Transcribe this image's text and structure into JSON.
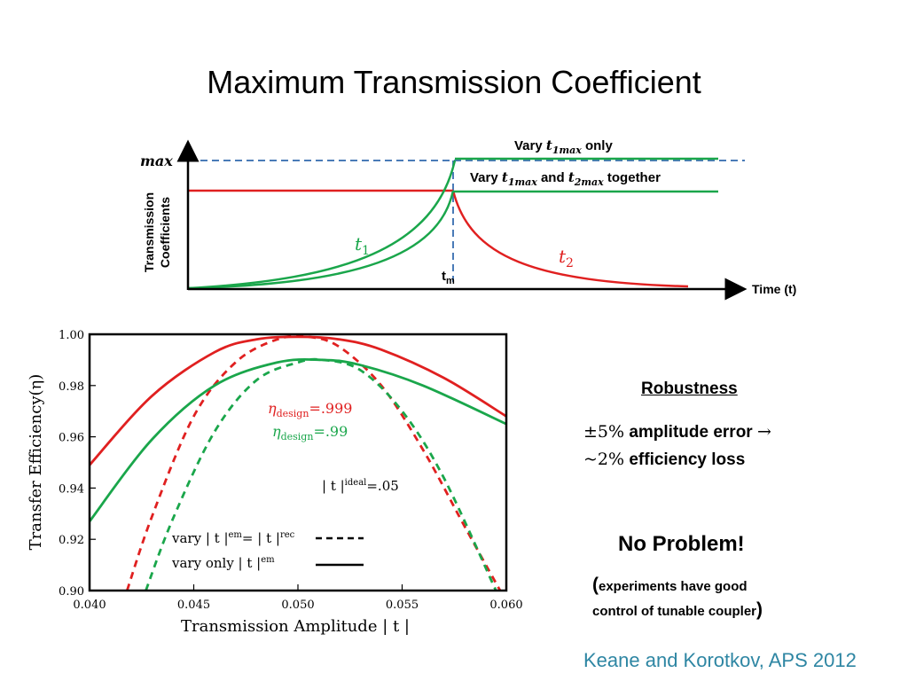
{
  "slide": {
    "title": "Maximum Transmission Coefficient",
    "citation": "Keane and Korotkov, APS 2012"
  },
  "colors": {
    "red": "#e02020",
    "green": "#1aa64b",
    "dashed_blue": "#4a7bb7",
    "citation": "#2e86a3"
  },
  "schematic": {
    "y_axis_label_line1": "Transmission",
    "y_axis_label_line2": "Coefficients",
    "x_axis_label": "Time (t)",
    "max_label": "max",
    "tm_label": "t",
    "tm_sub": "m",
    "t1_label": "t",
    "t1_sub": "1",
    "t2_label": "t",
    "t2_sub": "2",
    "annot_vary_t1_pre": "Vary ",
    "annot_vary_t1_var": "t",
    "annot_vary_t1_sub": "1max",
    "annot_vary_t1_post": " only",
    "annot_vary_both_pre": "Vary ",
    "annot_vary_both_var1": "t",
    "annot_vary_both_sub1": "1max",
    "annot_vary_both_mid": " and ",
    "annot_vary_both_var2": "t",
    "annot_vary_both_sub2": "2max",
    "annot_vary_both_post": " together"
  },
  "chart_data": {
    "type": "line",
    "xlabel": "Transmission Amplitude | t |",
    "ylabel": "Transfer Efficiency(η)",
    "xlim": [
      0.04,
      0.06
    ],
    "ylim": [
      0.9,
      1.0
    ],
    "x_ticks": [
      "0.040",
      "0.045",
      "0.050",
      "0.055",
      "0.060"
    ],
    "y_ticks": [
      "0.90",
      "0.92",
      "0.94",
      "0.96",
      "0.98",
      "1.00"
    ],
    "annotation_red": "η",
    "annotation_red_sub": "design",
    "annotation_red_val": "=.999",
    "annotation_green": "η",
    "annotation_green_sub": "design",
    "annotation_green_val": "=.99",
    "annotation_ideal": "| t |",
    "annotation_ideal_sup": "ideal",
    "annotation_ideal_val": "=.05",
    "legend_dashed": "vary | t |",
    "legend_dashed_sup1": "em",
    "legend_dashed_mid": "= | t |",
    "legend_dashed_sup2": "rec",
    "legend_solid": "vary only | t |",
    "legend_solid_sup": "em",
    "series": [
      {
        "color": "red",
        "style": "solid",
        "x": [
          0.04,
          0.043,
          0.046,
          0.048,
          0.05,
          0.052,
          0.054,
          0.057,
          0.06
        ],
        "y": [
          0.949,
          0.976,
          0.993,
          0.998,
          0.999,
          0.998,
          0.994,
          0.983,
          0.968
        ]
      },
      {
        "color": "red",
        "style": "dashed",
        "x": [
          0.0418,
          0.043,
          0.045,
          0.047,
          0.049,
          0.0505,
          0.052,
          0.054,
          0.056,
          0.058,
          0.0597
        ],
        "y": [
          0.9,
          0.929,
          0.968,
          0.989,
          0.998,
          0.999,
          0.995,
          0.98,
          0.955,
          0.925,
          0.9
        ]
      },
      {
        "color": "green",
        "style": "solid",
        "x": [
          0.04,
          0.043,
          0.046,
          0.049,
          0.0512,
          0.053,
          0.056,
          0.06
        ],
        "y": [
          0.927,
          0.959,
          0.98,
          0.989,
          0.99,
          0.988,
          0.98,
          0.965
        ]
      },
      {
        "color": "green",
        "style": "dashed",
        "x": [
          0.0427,
          0.044,
          0.046,
          0.048,
          0.05,
          0.0512,
          0.053,
          0.055,
          0.057,
          0.0595
        ],
        "y": [
          0.9,
          0.928,
          0.962,
          0.982,
          0.989,
          0.99,
          0.986,
          0.97,
          0.944,
          0.9
        ]
      }
    ]
  },
  "robustness": {
    "heading": "Robustness",
    "line1_sym": "±5%",
    "line1_text": " amplitude error ",
    "line1_arrow": "→",
    "line2_sym": "~2%",
    "line2_text": " efficiency loss",
    "no_problem": "No Problem!",
    "note_open": "(",
    "note_line1": "experiments have good",
    "note_line2": "control of tunable coupler",
    "note_close": ")"
  }
}
